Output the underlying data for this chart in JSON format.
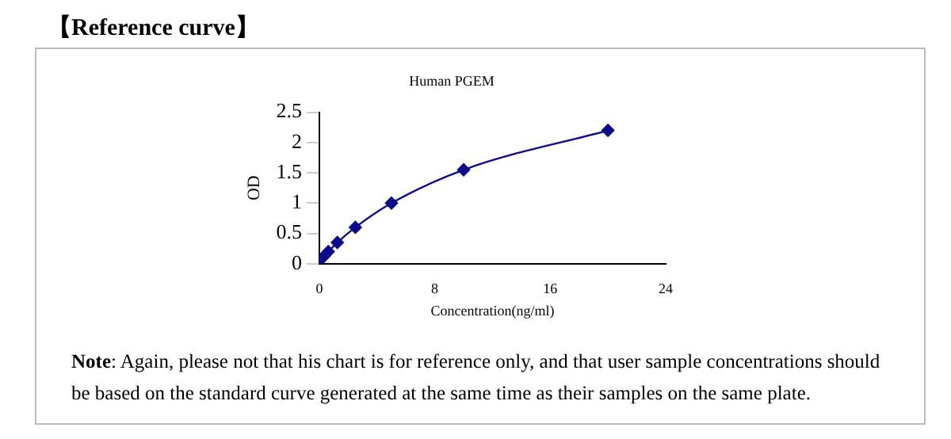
{
  "chart_data": {
    "type": "line",
    "title": "Human PGEM",
    "xlabel": "Concentration(ng/ml)",
    "ylabel": "OD",
    "annotations": [
      "【Reference curve】",
      "Note: Again, please not that his chart is for reference only, and that user sample concentrations should be based on the standard curve generated at the same time as their samples on the same plate."
    ],
    "x": [
      0,
      0.3125,
      0.625,
      1.25,
      2.5,
      5,
      10,
      20
    ],
    "series": [
      {
        "color": "#0a0a8a",
        "values": [
          0.05,
          0.12,
          0.2,
          0.35,
          0.6,
          1.0,
          1.55,
          2.2
        ]
      }
    ],
    "xlim": [
      0,
      24
    ],
    "xticks": [
      0,
      8,
      16,
      24
    ],
    "ylim": [
      0,
      2.5
    ],
    "yticks": [
      0,
      0.5,
      1,
      1.5,
      2,
      2.5
    ],
    "grid": false,
    "legend": false,
    "marker": "diamond",
    "line_style": "solid"
  }
}
